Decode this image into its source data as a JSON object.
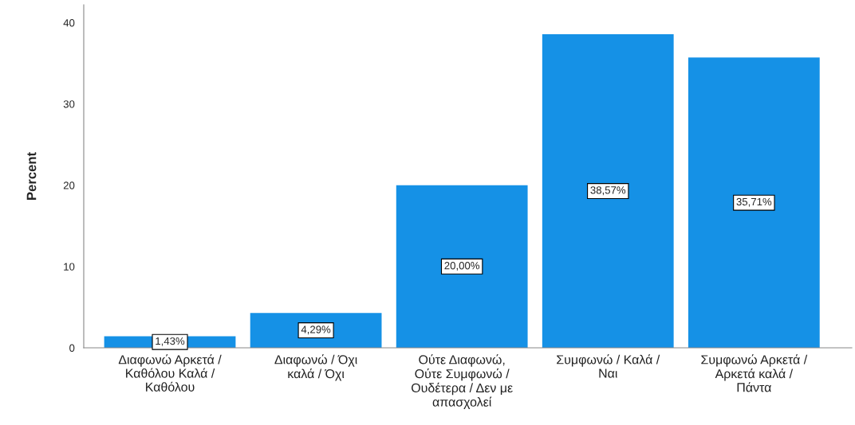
{
  "chart_data": {
    "type": "bar",
    "ylabel": "Percent",
    "categories": [
      "Διαφωνώ Αρκετά / Καθόλου Καλά / Καθόλου",
      "Διαφωνώ / Όχι καλά / Όχι",
      "Ούτε Διαφωνώ, Ούτε Συμφωνώ / Ουδέτερα / Δεν με απασχολεί",
      "Συμφωνώ / Καλά / Ναι",
      "Συμφωνώ Αρκετά / Αρκετά καλά / Πάντα"
    ],
    "values": [
      1.43,
      4.29,
      20.0,
      38.57,
      35.71
    ],
    "value_labels": [
      "1,43%",
      "4,29%",
      "20,00%",
      "38,57%",
      "35,71%"
    ],
    "color": "#1591e6",
    "ylim": [
      0,
      42.2
    ],
    "yticks": [
      0,
      10,
      20,
      30,
      40
    ],
    "grid": false,
    "legend": false
  }
}
